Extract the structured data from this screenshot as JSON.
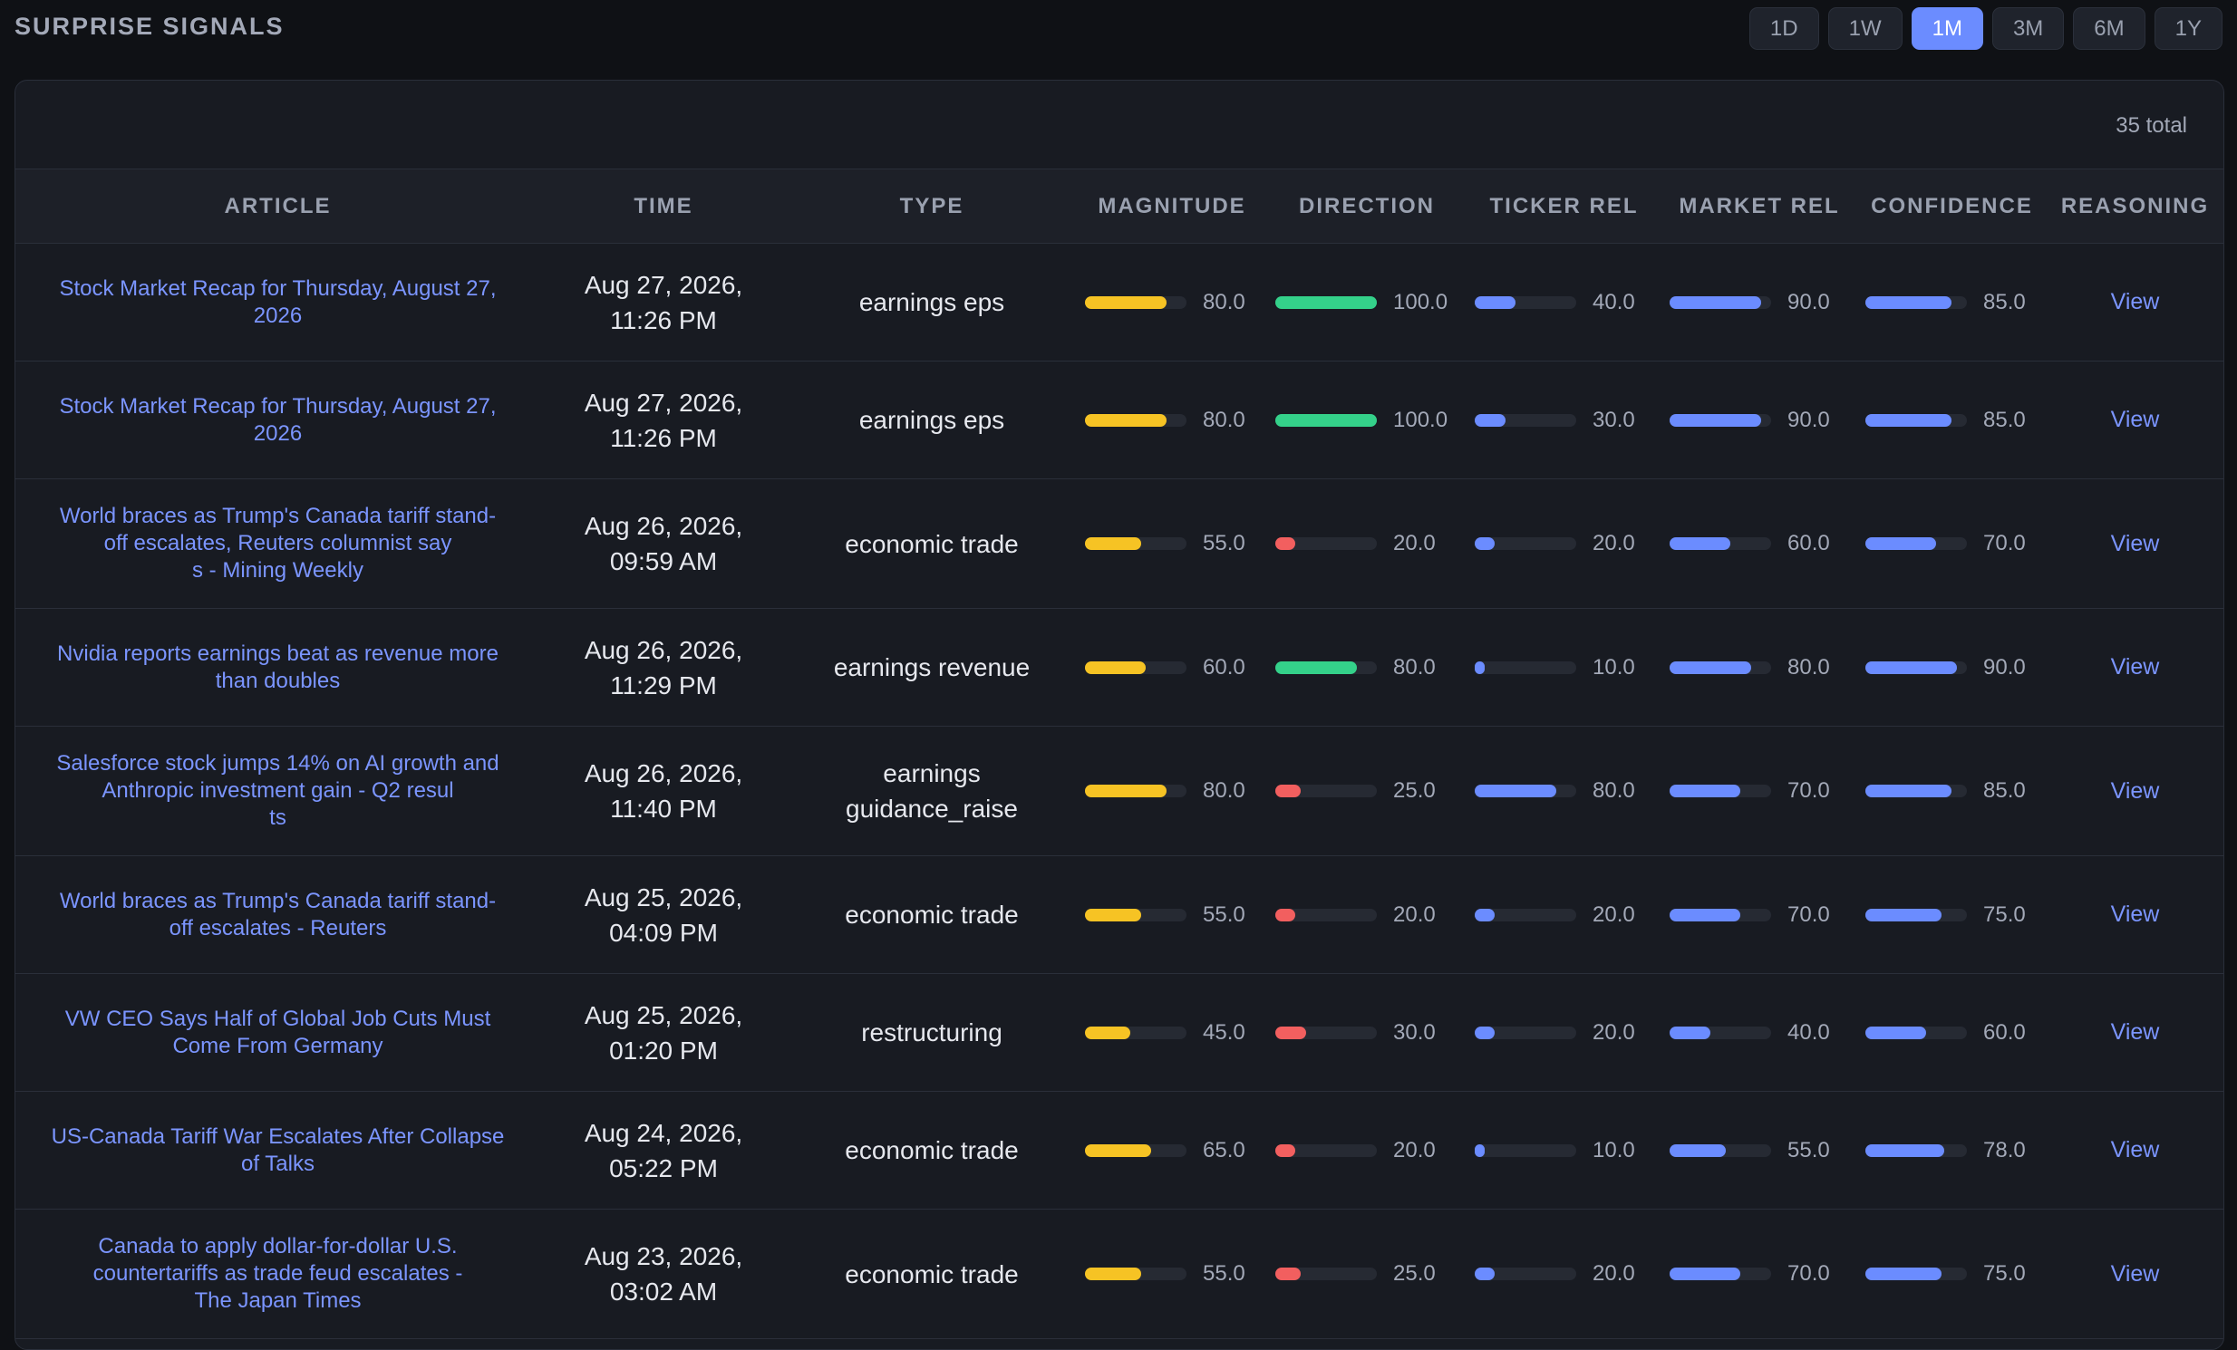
{
  "header": {
    "title": "SURPRISE SIGNALS",
    "ranges": [
      "1D",
      "1W",
      "1M",
      "3M",
      "6M",
      "1Y"
    ],
    "active_range": "1M"
  },
  "panel": {
    "total_label": "35 total"
  },
  "columns": [
    "ARTICLE",
    "TIME",
    "TYPE",
    "MAGNITUDE",
    "DIRECTION",
    "TICKER REL",
    "MARKET REL",
    "CONFIDENCE",
    "REASONING"
  ],
  "colors": {
    "magnitude": "#f6c324",
    "direction_positive": "#34d18a",
    "direction_negative": "#f25f5f",
    "metric": "#6b8cff",
    "link": "#7b95ff"
  },
  "view_label": "View",
  "rows": [
    {
      "article": "Stock Market Recap for Thursday, August 27,\n2026",
      "time": "Aug 27, 2026,\n11:26 PM",
      "type": "earnings eps",
      "magnitude": "80.0",
      "direction": "100.0",
      "direction_sign": "positive",
      "ticker_rel": "40.0",
      "market_rel": "90.0",
      "confidence": "85.0"
    },
    {
      "article": "Stock Market Recap for Thursday, August 27,\n2026",
      "time": "Aug 27, 2026,\n11:26 PM",
      "type": "earnings eps",
      "magnitude": "80.0",
      "direction": "100.0",
      "direction_sign": "positive",
      "ticker_rel": "30.0",
      "market_rel": "90.0",
      "confidence": "85.0"
    },
    {
      "article": "World braces as Trump's Canada tariff stand-\noff escalates, Reuters columnist say\ns - Mining Weekly",
      "time": "Aug 26, 2026,\n09:59 AM",
      "type": "economic trade",
      "magnitude": "55.0",
      "direction": "20.0",
      "direction_sign": "negative",
      "ticker_rel": "20.0",
      "market_rel": "60.0",
      "confidence": "70.0"
    },
    {
      "article": "Nvidia reports earnings beat as revenue more\nthan doubles",
      "time": "Aug 26, 2026,\n11:29 PM",
      "type": "earnings revenue",
      "magnitude": "60.0",
      "direction": "80.0",
      "direction_sign": "positive",
      "ticker_rel": "10.0",
      "market_rel": "80.0",
      "confidence": "90.0"
    },
    {
      "article": "Salesforce stock jumps 14% on AI growth and\nAnthropic investment gain - Q2 resul\nts",
      "time": "Aug 26, 2026,\n11:40 PM",
      "type": "earnings\nguidance_raise",
      "magnitude": "80.0",
      "direction": "25.0",
      "direction_sign": "negative",
      "ticker_rel": "80.0",
      "market_rel": "70.0",
      "confidence": "85.0"
    },
    {
      "article": "World braces as Trump's Canada tariff stand-\noff escalates - Reuters",
      "time": "Aug 25, 2026,\n04:09 PM",
      "type": "economic trade",
      "magnitude": "55.0",
      "direction": "20.0",
      "direction_sign": "negative",
      "ticker_rel": "20.0",
      "market_rel": "70.0",
      "confidence": "75.0"
    },
    {
      "article": "VW CEO Says Half of Global Job Cuts Must\nCome From Germany",
      "time": "Aug 25, 2026,\n01:20 PM",
      "type": "restructuring",
      "magnitude": "45.0",
      "direction": "30.0",
      "direction_sign": "negative",
      "ticker_rel": "20.0",
      "market_rel": "40.0",
      "confidence": "60.0"
    },
    {
      "article": "US-Canada Tariff War Escalates After Collapse\nof Talks",
      "time": "Aug 24, 2026,\n05:22 PM",
      "type": "economic trade",
      "magnitude": "65.0",
      "direction": "20.0",
      "direction_sign": "negative",
      "ticker_rel": "10.0",
      "market_rel": "55.0",
      "confidence": "78.0"
    },
    {
      "article": "Canada to apply dollar-for-dollar U.S.\ncountertariffs as trade feud escalates -\nThe Japan Times",
      "time": "Aug 23, 2026,\n03:02 AM",
      "type": "economic trade",
      "magnitude": "55.0",
      "direction": "25.0",
      "direction_sign": "negative",
      "ticker_rel": "20.0",
      "market_rel": "70.0",
      "confidence": "75.0"
    }
  ]
}
